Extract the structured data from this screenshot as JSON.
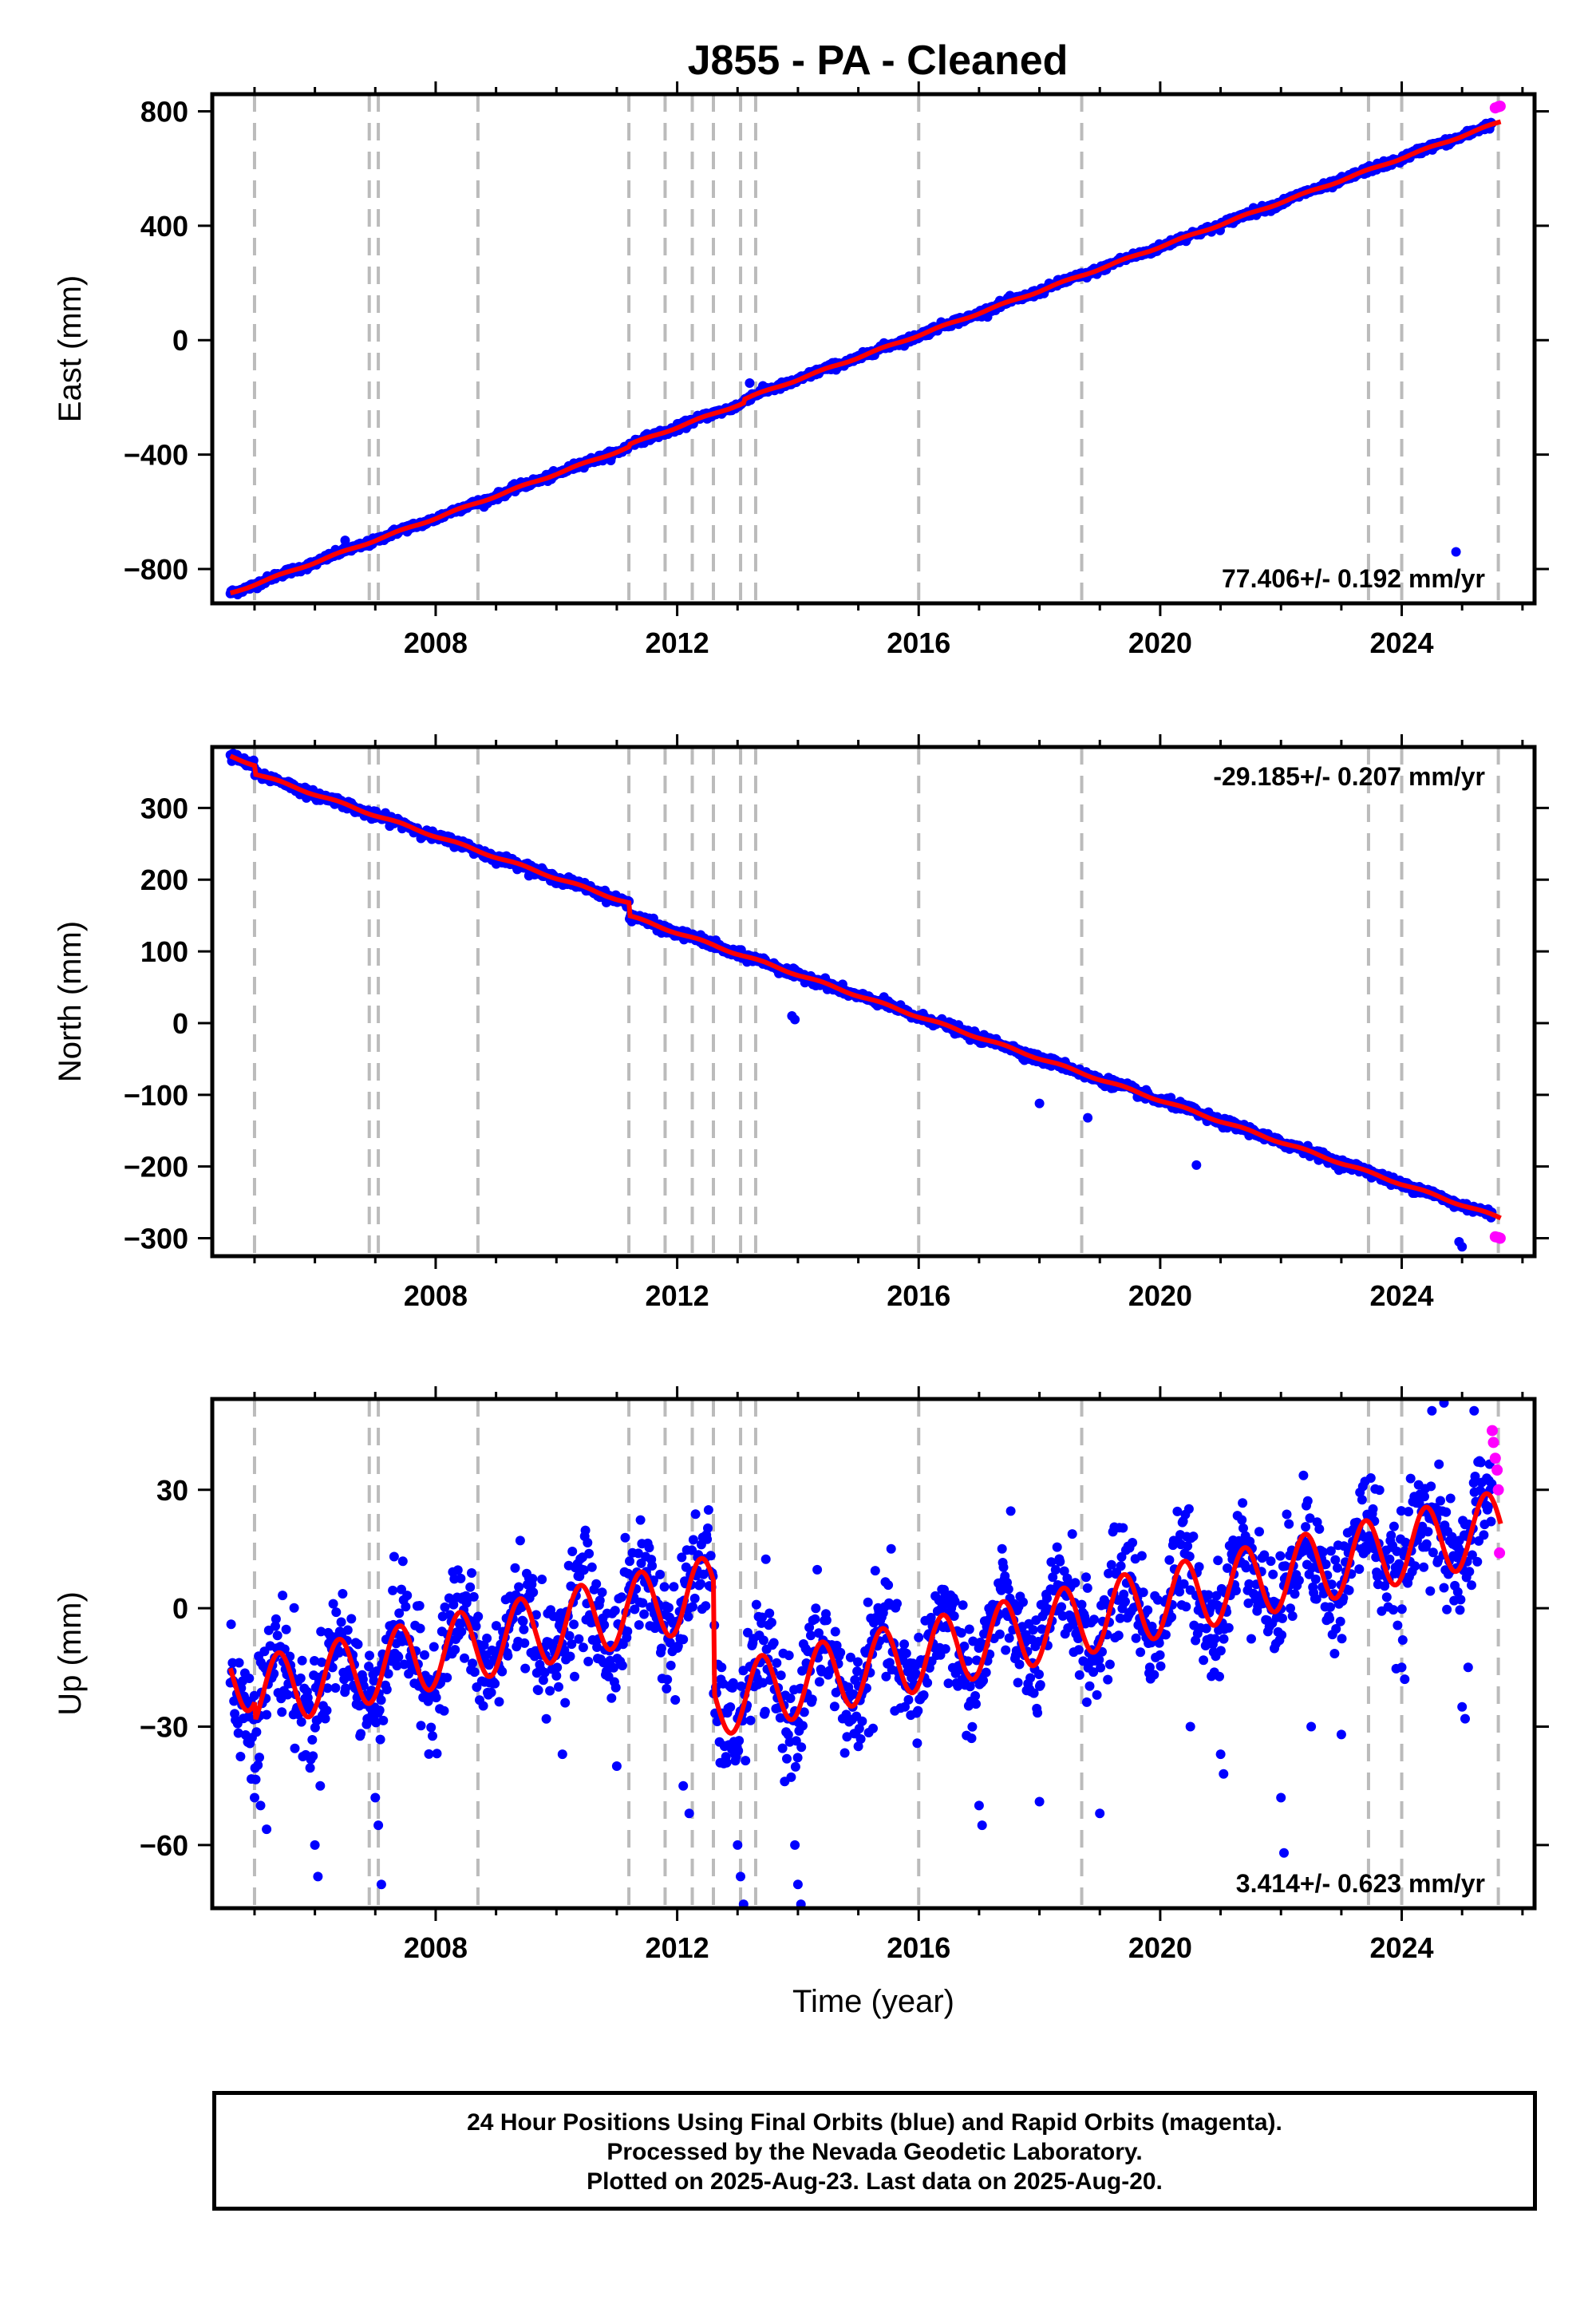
{
  "title": "J855  - PA - Cleaned",
  "footer": {
    "line1": "24 Hour Positions Using Final Orbits (blue) and Rapid Orbits (magenta).",
    "line2": "Processed by the Nevada Geodetic Laboratory.",
    "line3": "Plotted on 2025-Aug-23. Last data on 2025-Aug-20."
  },
  "colors": {
    "final_orbits": "#0000ff",
    "rapid_orbits": "#ff00ff",
    "model_fit": "#ff0000",
    "event_lines": "#bbbbbb"
  },
  "chart_data": [
    {
      "type": "scatter",
      "name": "east",
      "ylabel": "East (mm)",
      "xlabel": "",
      "xlim": [
        2004.3,
        2026.2
      ],
      "ylim": [
        -920,
        860
      ],
      "xticks": [
        2008,
        2012,
        2016,
        2020,
        2024
      ],
      "yticks": [
        -800,
        -400,
        0,
        400,
        800
      ],
      "yticklabels": [
        "−800",
        "−400",
        "0",
        "400",
        "800"
      ],
      "rate_label": "77.406+/- 0.192 mm/yr",
      "rate_position": "bottom-right",
      "model": {
        "t0": 2004.6,
        "start_value": -885,
        "rate": 77.406,
        "seasonal_amplitude": 3,
        "steps": [
          {
            "year": 2011.2,
            "offset": 8
          },
          {
            "year": 2013.1,
            "offset": 12
          }
        ]
      },
      "scatter_noise": 6,
      "outliers": [
        [
          2024.9,
          -740
        ],
        [
          2006.5,
          -700
        ],
        [
          2013.2,
          -150
        ]
      ],
      "rapid_points": [
        [
          2025.55,
          812
        ],
        [
          2025.6,
          816
        ],
        [
          2025.63,
          818
        ]
      ]
    },
    {
      "type": "scatter",
      "name": "north",
      "ylabel": "North (mm)",
      "xlabel": "",
      "xlim": [
        2004.3,
        2026.2
      ],
      "ylim": [
        -325,
        385
      ],
      "xticks": [
        2008,
        2012,
        2016,
        2020,
        2024
      ],
      "yticks": [
        -300,
        -200,
        -100,
        0,
        100,
        200,
        300
      ],
      "yticklabels": [
        "−300",
        "−200",
        "−100",
        "0",
        "100",
        "200",
        "300"
      ],
      "rate_label": "-29.185+/- 0.207 mm/yr",
      "rate_position": "top-right",
      "model": {
        "t0": 2004.6,
        "start_value": 372,
        "rate": -29.185,
        "seasonal_amplitude": 1.5,
        "steps": [
          {
            "year": 2005.0,
            "offset": -12
          },
          {
            "year": 2011.2,
            "offset": -18
          }
        ]
      },
      "scatter_noise": 3,
      "outliers": [
        [
          2013.9,
          10
        ],
        [
          2013.95,
          5
        ],
        [
          2018.0,
          -112
        ],
        [
          2018.8,
          -132
        ],
        [
          2020.6,
          -198
        ],
        [
          2025.0,
          -312
        ],
        [
          2024.95,
          -305
        ]
      ],
      "rapid_points": [
        [
          2025.55,
          -298
        ],
        [
          2025.6,
          -299
        ],
        [
          2025.63,
          -300
        ]
      ]
    },
    {
      "type": "scatter",
      "name": "up",
      "ylabel": "Up (mm)",
      "xlabel": "Time (year)",
      "xlim": [
        2004.3,
        2026.2
      ],
      "ylim": [
        -76,
        53
      ],
      "xticks": [
        2008,
        2012,
        2016,
        2020,
        2024
      ],
      "yticks": [
        -60,
        -30,
        0,
        30
      ],
      "yticklabels": [
        "−60",
        "−30",
        "0",
        "30"
      ],
      "rate_label": "3.414+/- 0.623 mm/yr",
      "rate_position": "bottom-right",
      "model": {
        "t0": 2004.6,
        "start_value": -18,
        "rate": 3.414,
        "seasonal_amplitude": 9,
        "steps": [
          {
            "year": 2005.0,
            "offset": -5
          },
          {
            "year": 2012.6,
            "offset": -28
          }
        ]
      },
      "scatter_noise": 7,
      "outliers": [
        [
          2005.0,
          -48
        ],
        [
          2005.1,
          -50
        ],
        [
          2005.2,
          -56
        ],
        [
          2006.0,
          -60
        ],
        [
          2006.05,
          -68
        ],
        [
          2007.0,
          -48
        ],
        [
          2007.05,
          -55
        ],
        [
          2007.1,
          -70
        ],
        [
          2010.1,
          -37
        ],
        [
          2011.0,
          -40
        ],
        [
          2012.1,
          -45
        ],
        [
          2012.2,
          -52
        ],
        [
          2013.0,
          -60
        ],
        [
          2013.05,
          -68
        ],
        [
          2013.1,
          -75
        ],
        [
          2013.95,
          -60
        ],
        [
          2014.0,
          -70
        ],
        [
          2014.05,
          -75
        ],
        [
          2015.0,
          -35
        ],
        [
          2017.0,
          -50
        ],
        [
          2017.05,
          -55
        ],
        [
          2018.0,
          -49
        ],
        [
          2019.0,
          -52
        ],
        [
          2020.5,
          -30
        ],
        [
          2021.0,
          -37
        ],
        [
          2021.05,
          -42
        ],
        [
          2022.0,
          -48
        ],
        [
          2022.05,
          -62
        ],
        [
          2022.5,
          -30
        ],
        [
          2023.0,
          -32
        ],
        [
          2024.0,
          -15
        ],
        [
          2024.05,
          -18
        ],
        [
          2025.0,
          -25
        ],
        [
          2025.05,
          -28
        ],
        [
          2025.1,
          -15
        ],
        [
          2024.7,
          52
        ],
        [
          2024.5,
          50
        ],
        [
          2025.2,
          50
        ]
      ],
      "rapid_points": [
        [
          2025.5,
          45
        ],
        [
          2025.52,
          42
        ],
        [
          2025.55,
          38
        ],
        [
          2025.58,
          35
        ],
        [
          2025.6,
          30
        ],
        [
          2025.62,
          14
        ]
      ]
    }
  ],
  "event_lines": [
    2005.0,
    2006.9,
    2007.05,
    2008.7,
    2011.2,
    2011.8,
    2012.25,
    2012.6,
    2013.05,
    2013.3,
    2016.0,
    2018.7,
    2023.45,
    2024.0,
    2025.6
  ]
}
